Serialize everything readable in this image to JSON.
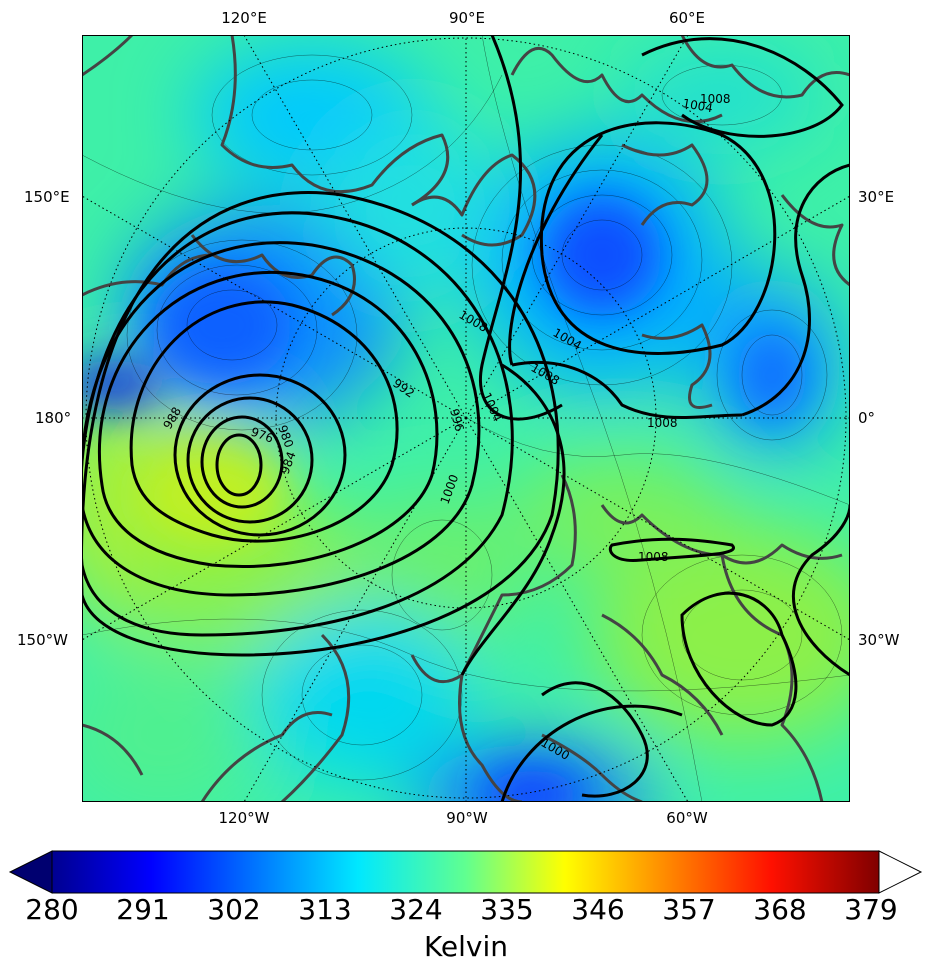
{
  "map": {
    "field_units": "Kelvin",
    "lon_labels_top": [
      "120°E",
      "90°E",
      "60°E"
    ],
    "lon_labels_bottom": [
      "120°W",
      "90°W",
      "60°W"
    ],
    "lon_labels_left": [
      "150°E",
      "180°",
      "150°W"
    ],
    "lon_labels_right": [
      "30°E",
      "0°",
      "30°W"
    ],
    "contour_labels": [
      "976",
      "980",
      "984",
      "988",
      "992",
      "996",
      "1000",
      "1004",
      "1008",
      "1008",
      "1004",
      "1008",
      "1008",
      "1004",
      "1008",
      "1000"
    ]
  },
  "colorbar": {
    "ticks": [
      "280",
      "291",
      "302",
      "313",
      "324",
      "335",
      "346",
      "357",
      "368",
      "379"
    ],
    "min": 280,
    "max": 379,
    "extend": "both",
    "colormap": "jet"
  },
  "colors": {
    "low": "#0a5cff",
    "mid": "#27f0c0",
    "high": "#a8f23a",
    "coast": "#444444"
  }
}
